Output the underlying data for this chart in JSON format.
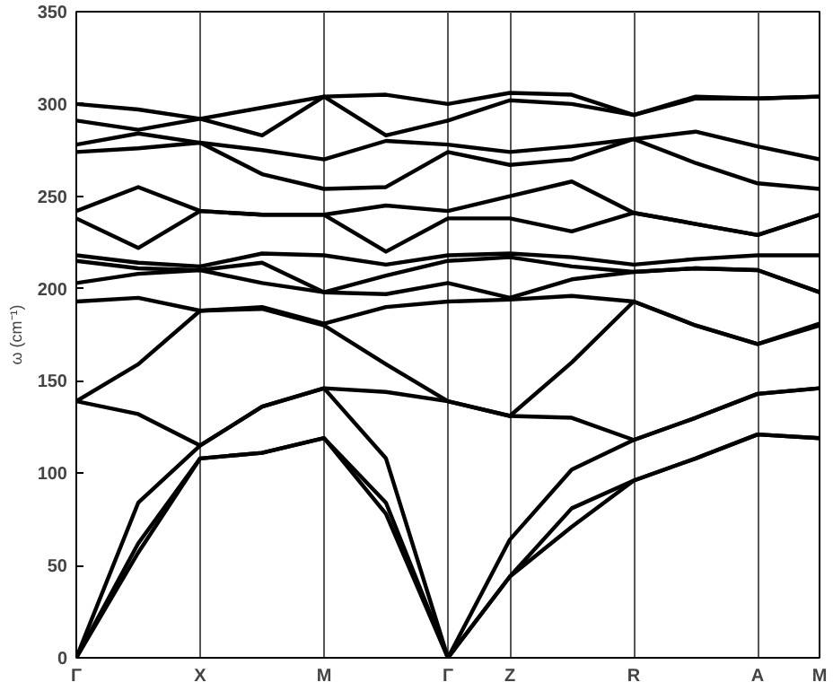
{
  "chart_data": {
    "type": "line",
    "ylabel": "ω (cm⁻¹)",
    "categories": [
      "Γ",
      null,
      "X",
      null,
      "M",
      null,
      "Γ",
      "Z",
      null,
      "R",
      null,
      "A",
      "M"
    ],
    "ylim": [
      0,
      350
    ],
    "yticks": [
      0,
      50,
      100,
      150,
      200,
      250,
      300,
      350
    ],
    "grid": "x",
    "line_style": "solid",
    "series": [
      {
        "color": "#000000",
        "values": [
          0,
          57,
          108,
          111,
          119,
          78,
          0,
          44,
          71,
          96,
          108,
          121,
          119
        ]
      },
      {
        "color": "#000000",
        "values": [
          0,
          62,
          108,
          111,
          119,
          84,
          0,
          44,
          81,
          96,
          108,
          121,
          119
        ]
      },
      {
        "color": "#000000",
        "values": [
          0,
          84,
          115,
          136,
          146,
          108,
          0,
          64,
          102,
          118,
          130,
          143,
          146
        ]
      },
      {
        "color": "#000000",
        "values": [
          139,
          132,
          115,
          136,
          146,
          144,
          139,
          131,
          130,
          118,
          130,
          143,
          146
        ]
      },
      {
        "color": "#000000",
        "values": [
          139,
          159,
          188,
          189,
          180,
          159,
          139,
          131,
          160,
          193,
          180,
          170,
          180
        ]
      },
      {
        "color": "#000000",
        "values": [
          193,
          195,
          188,
          190,
          181,
          190,
          193,
          194,
          196,
          193,
          180,
          170,
          181
        ]
      },
      {
        "color": "#000000",
        "values": [
          203,
          208,
          210,
          203,
          198,
          197,
          203,
          195,
          205,
          209,
          211,
          210,
          198
        ]
      },
      {
        "color": "#000000",
        "values": [
          215,
          211,
          210,
          214,
          198,
          207,
          215,
          217,
          212,
          209,
          211,
          210,
          198
        ]
      },
      {
        "color": "#000000",
        "values": [
          218,
          214,
          212,
          219,
          218,
          213,
          218,
          219,
          217,
          213,
          216,
          218,
          218
        ]
      },
      {
        "color": "#000000",
        "values": [
          238,
          222,
          242,
          240,
          240,
          220,
          238,
          238,
          231,
          241,
          235,
          229,
          240
        ]
      },
      {
        "color": "#000000",
        "values": [
          242,
          255,
          242,
          240,
          240,
          245,
          242,
          250,
          258,
          241,
          235,
          229,
          240
        ]
      },
      {
        "color": "#000000",
        "values": [
          274,
          276,
          279,
          262,
          254,
          255,
          274,
          267,
          270,
          281,
          268,
          257,
          254
        ]
      },
      {
        "color": "#000000",
        "values": [
          278,
          284,
          279,
          275,
          270,
          280,
          278,
          274,
          277,
          281,
          285,
          277,
          270
        ]
      },
      {
        "color": "#000000",
        "values": [
          291,
          286,
          292,
          283,
          304,
          283,
          291,
          302,
          300,
          294,
          303,
          303,
          304
        ]
      },
      {
        "color": "#000000",
        "values": [
          300,
          297,
          292,
          298,
          304,
          305,
          300,
          306,
          305,
          294,
          304,
          303,
          304
        ]
      }
    ]
  }
}
